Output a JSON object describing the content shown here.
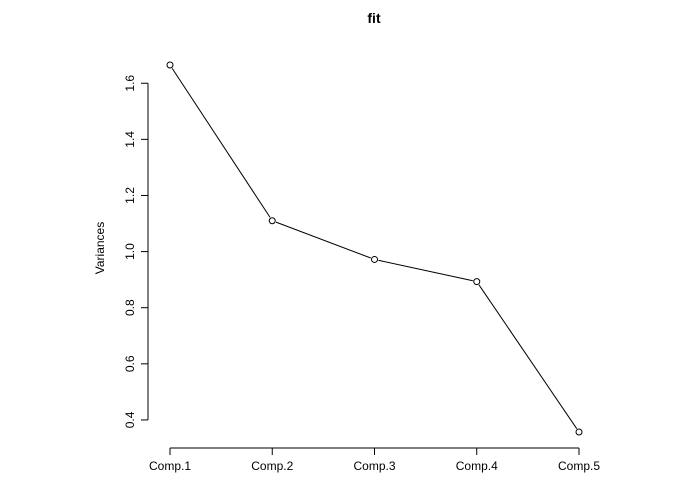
{
  "chart_data": {
    "type": "line",
    "title": "fit",
    "xlabel": "",
    "ylabel": "Variances",
    "categories": [
      "Comp.1",
      "Comp.2",
      "Comp.3",
      "Comp.4",
      "Comp.5"
    ],
    "values": [
      1.665,
      1.11,
      0.972,
      0.893,
      0.357
    ],
    "yticks": [
      0.4,
      0.6,
      0.8,
      1.0,
      1.2,
      1.4,
      1.6
    ],
    "ytick_labels": [
      "0.4",
      "0.6",
      "0.8",
      "1.0",
      "1.2",
      "1.4",
      "1.6"
    ],
    "ylim": [
      0.357,
      1.665
    ],
    "grid": false,
    "line_color": "#000000",
    "marker": "open-circle"
  }
}
